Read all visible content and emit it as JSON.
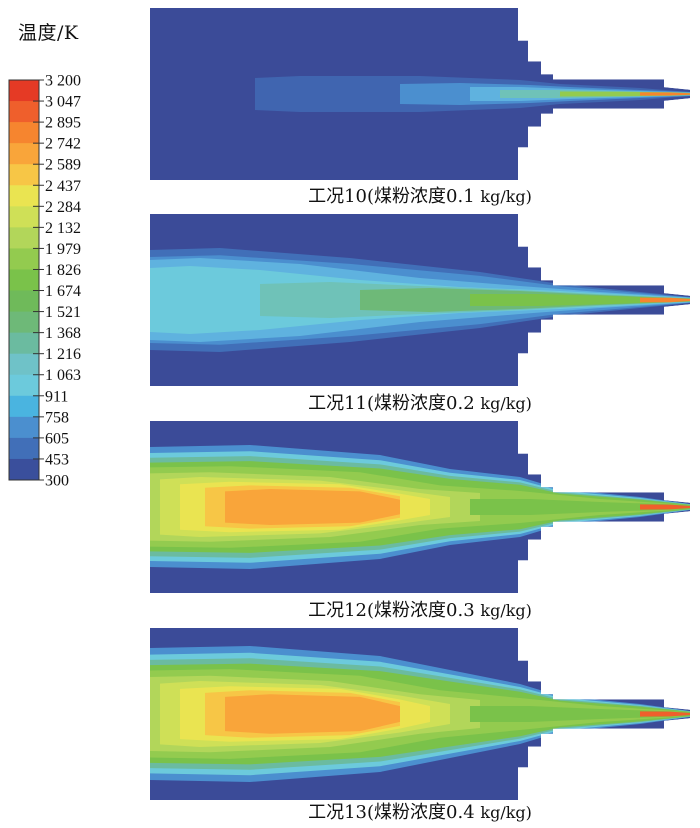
{
  "legend": {
    "title": "温度/K",
    "ticks": [
      "3 200",
      "3 047",
      "2 895",
      "2 742",
      "2 589",
      "2 437",
      "2 284",
      "2 132",
      "1 979",
      "1 826",
      "1 674",
      "1 521",
      "1 368",
      "1 216",
      "1 063",
      "911",
      "758",
      "605",
      "453",
      "300"
    ],
    "colors": [
      "#e53a25",
      "#ef5f2c",
      "#f6852f",
      "#f9a53a",
      "#f7c646",
      "#eae451",
      "#cfe057",
      "#b2d65a",
      "#93cb4f",
      "#7ac24a",
      "#6fba5a",
      "#6eb978",
      "#6bbba0",
      "#6fc2c8",
      "#6ccadc",
      "#4ab4e0",
      "#4b8fcf",
      "#416fb8",
      "#3a4f9c"
    ]
  },
  "panels": [
    {
      "case": "工况10",
      "concentration": "(煤粉浓度0.1",
      "unit": "kg/kg)",
      "flame_level": 0.1
    },
    {
      "case": "工况11",
      "concentration": "(煤粉浓度0.2",
      "unit": "kg/kg)",
      "flame_level": 0.2
    },
    {
      "case": "工况12",
      "concentration": "(煤粉浓度0.3",
      "unit": "kg/kg)",
      "flame_level": 0.3
    },
    {
      "case": "工况13",
      "concentration": "(煤粉浓度0.4",
      "unit": "kg/kg)",
      "flame_level": 0.4
    }
  ]
}
